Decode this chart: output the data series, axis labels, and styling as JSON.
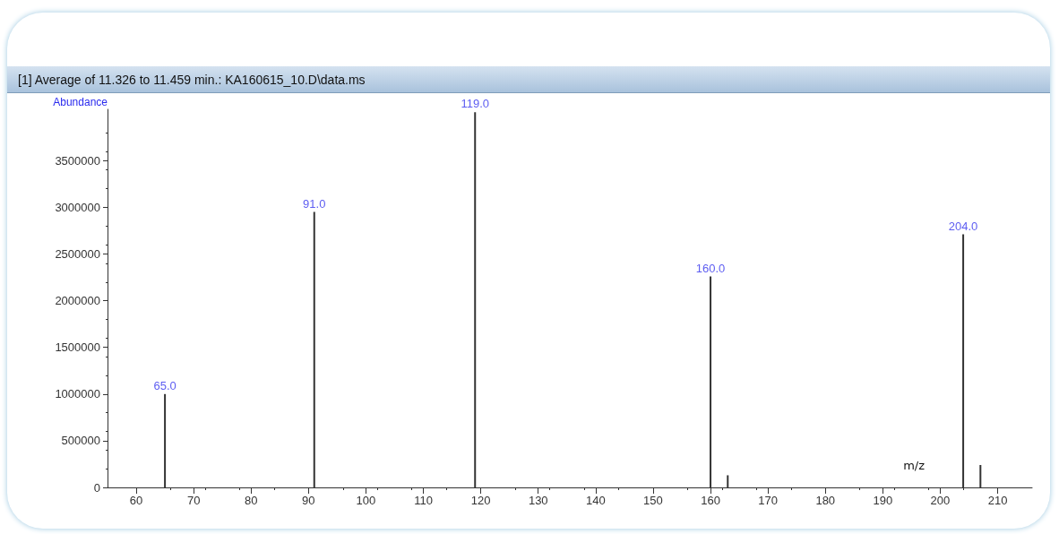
{
  "chart_data": {
    "type": "bar",
    "title": "[1] Average of 11.326 to 11.459 min.: KA160615_10.D\\data.ms",
    "ylabel": "Abundance",
    "xlabel": "m/z",
    "x": [
      65,
      91,
      119,
      160,
      163,
      204,
      207
    ],
    "values": [
      1000000,
      2950000,
      4020000,
      2260000,
      130000,
      2710000,
      240000
    ],
    "annotations": [
      {
        "text": "65.0",
        "x": 65,
        "y": 1000000
      },
      {
        "text": "91.0",
        "x": 91,
        "y": 2950000
      },
      {
        "text": "119.0",
        "x": 119,
        "y": 4020000
      },
      {
        "text": "160.0",
        "x": 160,
        "y": 2260000
      },
      {
        "text": "204.0",
        "x": 204,
        "y": 2710000
      }
    ],
    "color": "#333333",
    "xlim": [
      55,
      216
    ],
    "xticks": [
      60,
      70,
      80,
      90,
      100,
      110,
      120,
      130,
      140,
      150,
      160,
      170,
      180,
      190,
      200,
      210
    ],
    "ylim": [
      0,
      4050000
    ],
    "yticks": [
      0,
      500000,
      1000000,
      1500000,
      2000000,
      2500000,
      3000000,
      3500000
    ]
  }
}
